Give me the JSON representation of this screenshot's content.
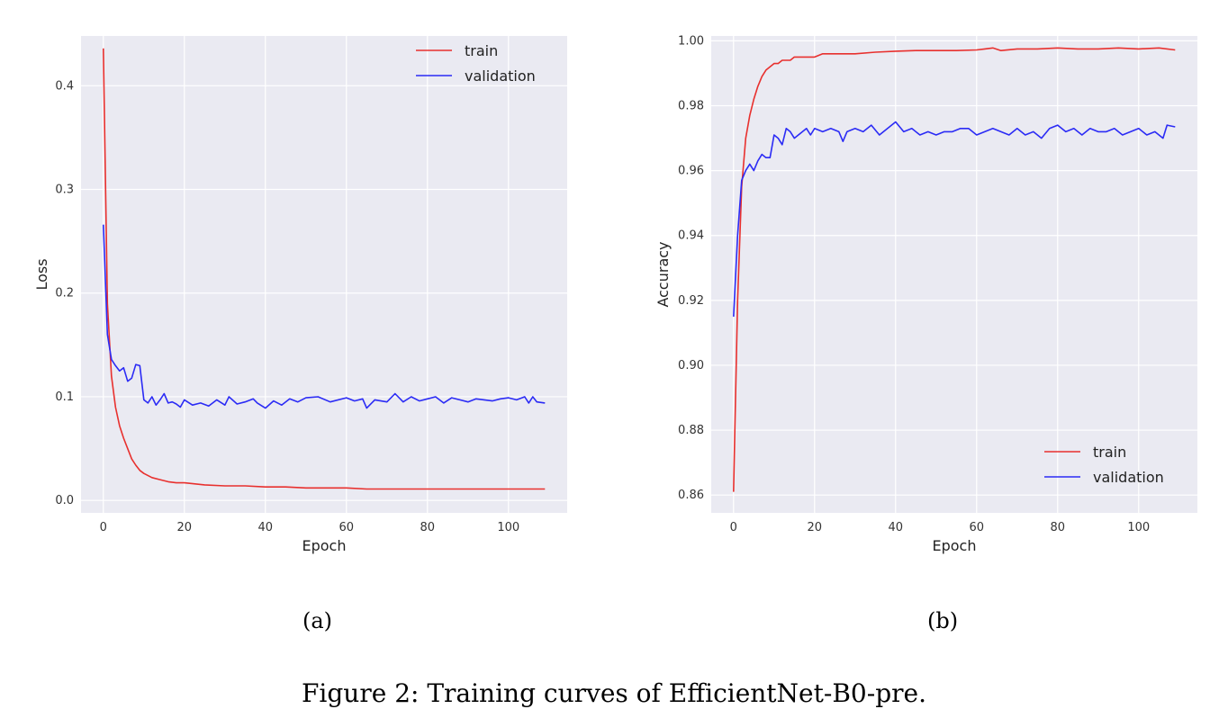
{
  "chart_data": [
    {
      "type": "line",
      "xlabel": "Epoch",
      "ylabel": "Loss",
      "xlim": [
        -5.5,
        114.5
      ],
      "ylim": [
        -0.012,
        0.448
      ],
      "xticks": [
        0,
        20,
        40,
        60,
        80,
        100
      ],
      "yticks": [
        0.0,
        0.1,
        0.2,
        0.3,
        0.4
      ],
      "ytick_labels": [
        "0.0",
        "0.1",
        "0.2",
        "0.3",
        "0.4"
      ],
      "grid": true,
      "legend_position": "top-right",
      "series": [
        {
          "name": "train",
          "color": "#e8302e",
          "x": [
            0,
            1,
            2,
            3,
            4,
            5,
            6,
            7,
            8,
            9,
            10,
            12,
            14,
            16,
            18,
            20,
            25,
            30,
            35,
            40,
            45,
            50,
            55,
            60,
            65,
            70,
            80,
            90,
            100,
            109
          ],
          "y": [
            0.436,
            0.19,
            0.12,
            0.09,
            0.072,
            0.06,
            0.05,
            0.04,
            0.034,
            0.029,
            0.026,
            0.022,
            0.02,
            0.018,
            0.017,
            0.017,
            0.015,
            0.014,
            0.014,
            0.013,
            0.013,
            0.012,
            0.012,
            0.012,
            0.011,
            0.011,
            0.011,
            0.011,
            0.011,
            0.011
          ]
        },
        {
          "name": "validation",
          "color": "#2b2bf5",
          "x": [
            0,
            1,
            2,
            3,
            4,
            5,
            6,
            7,
            8,
            9,
            10,
            11,
            12,
            13,
            14,
            15,
            16,
            17,
            18,
            19,
            20,
            22,
            24,
            26,
            28,
            30,
            31,
            33,
            35,
            37,
            38,
            40,
            42,
            44,
            46,
            48,
            50,
            53,
            56,
            60,
            62,
            64,
            65,
            67,
            70,
            72,
            74,
            76,
            78,
            80,
            82,
            84,
            86,
            88,
            90,
            92,
            94,
            96,
            98,
            100,
            102,
            104,
            105,
            106,
            107,
            109
          ],
          "y": [
            0.266,
            0.16,
            0.136,
            0.13,
            0.125,
            0.128,
            0.115,
            0.118,
            0.131,
            0.13,
            0.097,
            0.094,
            0.1,
            0.092,
            0.097,
            0.103,
            0.094,
            0.095,
            0.093,
            0.09,
            0.097,
            0.092,
            0.094,
            0.091,
            0.097,
            0.092,
            0.1,
            0.093,
            0.095,
            0.098,
            0.094,
            0.089,
            0.096,
            0.092,
            0.098,
            0.095,
            0.099,
            0.1,
            0.095,
            0.099,
            0.096,
            0.098,
            0.089,
            0.097,
            0.095,
            0.103,
            0.095,
            0.1,
            0.096,
            0.098,
            0.1,
            0.094,
            0.099,
            0.097,
            0.095,
            0.098,
            0.097,
            0.096,
            0.098,
            0.099,
            0.097,
            0.1,
            0.094,
            0.1,
            0.095,
            0.094
          ]
        }
      ]
    },
    {
      "type": "line",
      "xlabel": "Epoch",
      "ylabel": "Accuracy",
      "xlim": [
        -5.5,
        114.5
      ],
      "ylim": [
        0.8545,
        1.0015
      ],
      "xticks": [
        0,
        20,
        40,
        60,
        80,
        100
      ],
      "yticks": [
        0.86,
        0.88,
        0.9,
        0.92,
        0.94,
        0.96,
        0.98,
        1.0
      ],
      "ytick_labels": [
        "0.86",
        "0.88",
        "0.90",
        "0.92",
        "0.94",
        "0.96",
        "0.98",
        "1.00"
      ],
      "grid": true,
      "legend_position": "bottom-right",
      "series": [
        {
          "name": "train",
          "color": "#e8302e",
          "x": [
            0,
            1,
            2,
            3,
            4,
            5,
            6,
            7,
            8,
            9,
            10,
            11,
            12,
            13,
            14,
            15,
            16,
            18,
            20,
            22,
            24,
            26,
            28,
            30,
            35,
            40,
            45,
            50,
            55,
            60,
            62,
            64,
            66,
            70,
            75,
            80,
            85,
            90,
            95,
            100,
            105,
            109
          ],
          "y": [
            0.861,
            0.92,
            0.955,
            0.97,
            0.977,
            0.982,
            0.986,
            0.989,
            0.991,
            0.992,
            0.993,
            0.993,
            0.994,
            0.994,
            0.994,
            0.995,
            0.995,
            0.995,
            0.995,
            0.996,
            0.996,
            0.996,
            0.996,
            0.996,
            0.9965,
            0.9968,
            0.997,
            0.997,
            0.997,
            0.9972,
            0.9975,
            0.9978,
            0.997,
            0.9975,
            0.9975,
            0.9978,
            0.9975,
            0.9975,
            0.9978,
            0.9975,
            0.9978,
            0.9972
          ]
        },
        {
          "name": "validation",
          "color": "#2b2bf5",
          "x": [
            0,
            1,
            2,
            3,
            4,
            5,
            6,
            7,
            8,
            9,
            10,
            11,
            12,
            13,
            14,
            15,
            16,
            17,
            18,
            19,
            20,
            22,
            24,
            26,
            27,
            28,
            30,
            32,
            34,
            36,
            38,
            40,
            42,
            44,
            46,
            48,
            50,
            52,
            54,
            56,
            58,
            60,
            62,
            64,
            66,
            68,
            70,
            72,
            74,
            76,
            78,
            80,
            82,
            84,
            86,
            88,
            90,
            92,
            94,
            96,
            98,
            100,
            102,
            104,
            106,
            107,
            109
          ],
          "y": [
            0.915,
            0.94,
            0.957,
            0.96,
            0.962,
            0.96,
            0.963,
            0.965,
            0.964,
            0.964,
            0.971,
            0.97,
            0.968,
            0.973,
            0.972,
            0.97,
            0.971,
            0.972,
            0.973,
            0.971,
            0.973,
            0.972,
            0.973,
            0.972,
            0.969,
            0.972,
            0.973,
            0.972,
            0.974,
            0.971,
            0.973,
            0.975,
            0.972,
            0.973,
            0.971,
            0.972,
            0.971,
            0.972,
            0.972,
            0.973,
            0.973,
            0.971,
            0.972,
            0.973,
            0.972,
            0.971,
            0.973,
            0.971,
            0.972,
            0.97,
            0.973,
            0.974,
            0.972,
            0.973,
            0.971,
            0.973,
            0.972,
            0.972,
            0.973,
            0.971,
            0.972,
            0.973,
            0.971,
            0.972,
            0.97,
            0.974,
            0.9735
          ]
        }
      ]
    }
  ],
  "panels": [
    {
      "sublabel": "(a)"
    },
    {
      "sublabel": "(b)"
    }
  ],
  "caption": "Figure 2: Training curves of EfficientNet-B0-pre."
}
